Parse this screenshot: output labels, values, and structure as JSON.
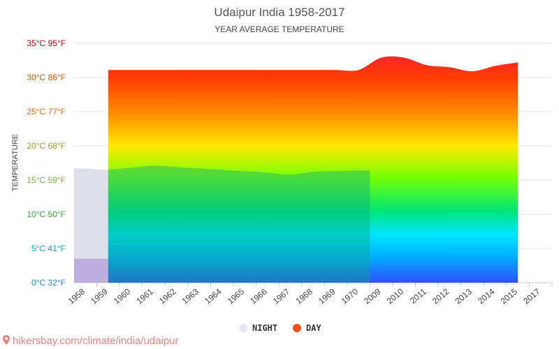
{
  "chart_data": {
    "type": "area",
    "title": "Udaipur India 1958-2017",
    "subtitle": "YEAR AVERAGE TEMPERATURE",
    "ylabel": "TEMPERATURE",
    "ylim": [
      0,
      35
    ],
    "ytick_values": [
      0,
      5,
      10,
      15,
      20,
      25,
      30,
      35
    ],
    "ytick_labels": [
      "0°C 32°F",
      "5°C 41°F",
      "10°C 50°F",
      "15°C 59°F",
      "20°C 68°F",
      "25°C 77°F",
      "30°C 86°F",
      "35°C 95°F"
    ],
    "ytick_colors": [
      "#1e88e5",
      "#00acc1",
      "#43a047",
      "#7cb342",
      "#9e9d24",
      "#ef6c00",
      "#e65100",
      "#d50000"
    ],
    "categories": [
      "1958",
      "1959",
      "1960",
      "1961",
      "1962",
      "1963",
      "1964",
      "1965",
      "1966",
      "1967",
      "1968",
      "1969",
      "1970",
      "2009",
      "2010",
      "2011",
      "2012",
      "2013",
      "2014",
      "2015",
      "2017"
    ],
    "grid": true,
    "legend_position": "bottom",
    "series": [
      {
        "name": "NIGHT",
        "color": "#e6e6ee",
        "values": [
          16.7,
          16.5,
          16.8,
          17.1,
          16.9,
          16.7,
          16.5,
          16.3,
          16.1,
          15.8,
          16.2,
          16.3,
          16.4,
          null,
          null,
          null,
          null,
          null,
          null,
          null,
          null
        ]
      },
      {
        "name": "DAY",
        "color": "#f4511e",
        "values": [
          null,
          31.1,
          31.1,
          31.1,
          31.1,
          31.1,
          31.1,
          31.1,
          31.1,
          31.1,
          31.1,
          31.1,
          31.1,
          32.9,
          32.9,
          31.8,
          31.5,
          30.9,
          31.7,
          32.2,
          null
        ]
      }
    ]
  },
  "legend": {
    "night": "NIGHT",
    "day": "DAY"
  },
  "footer": {
    "text": "hikersbay.com/climate/india/udaipur",
    "icon": "map-pin-icon"
  }
}
